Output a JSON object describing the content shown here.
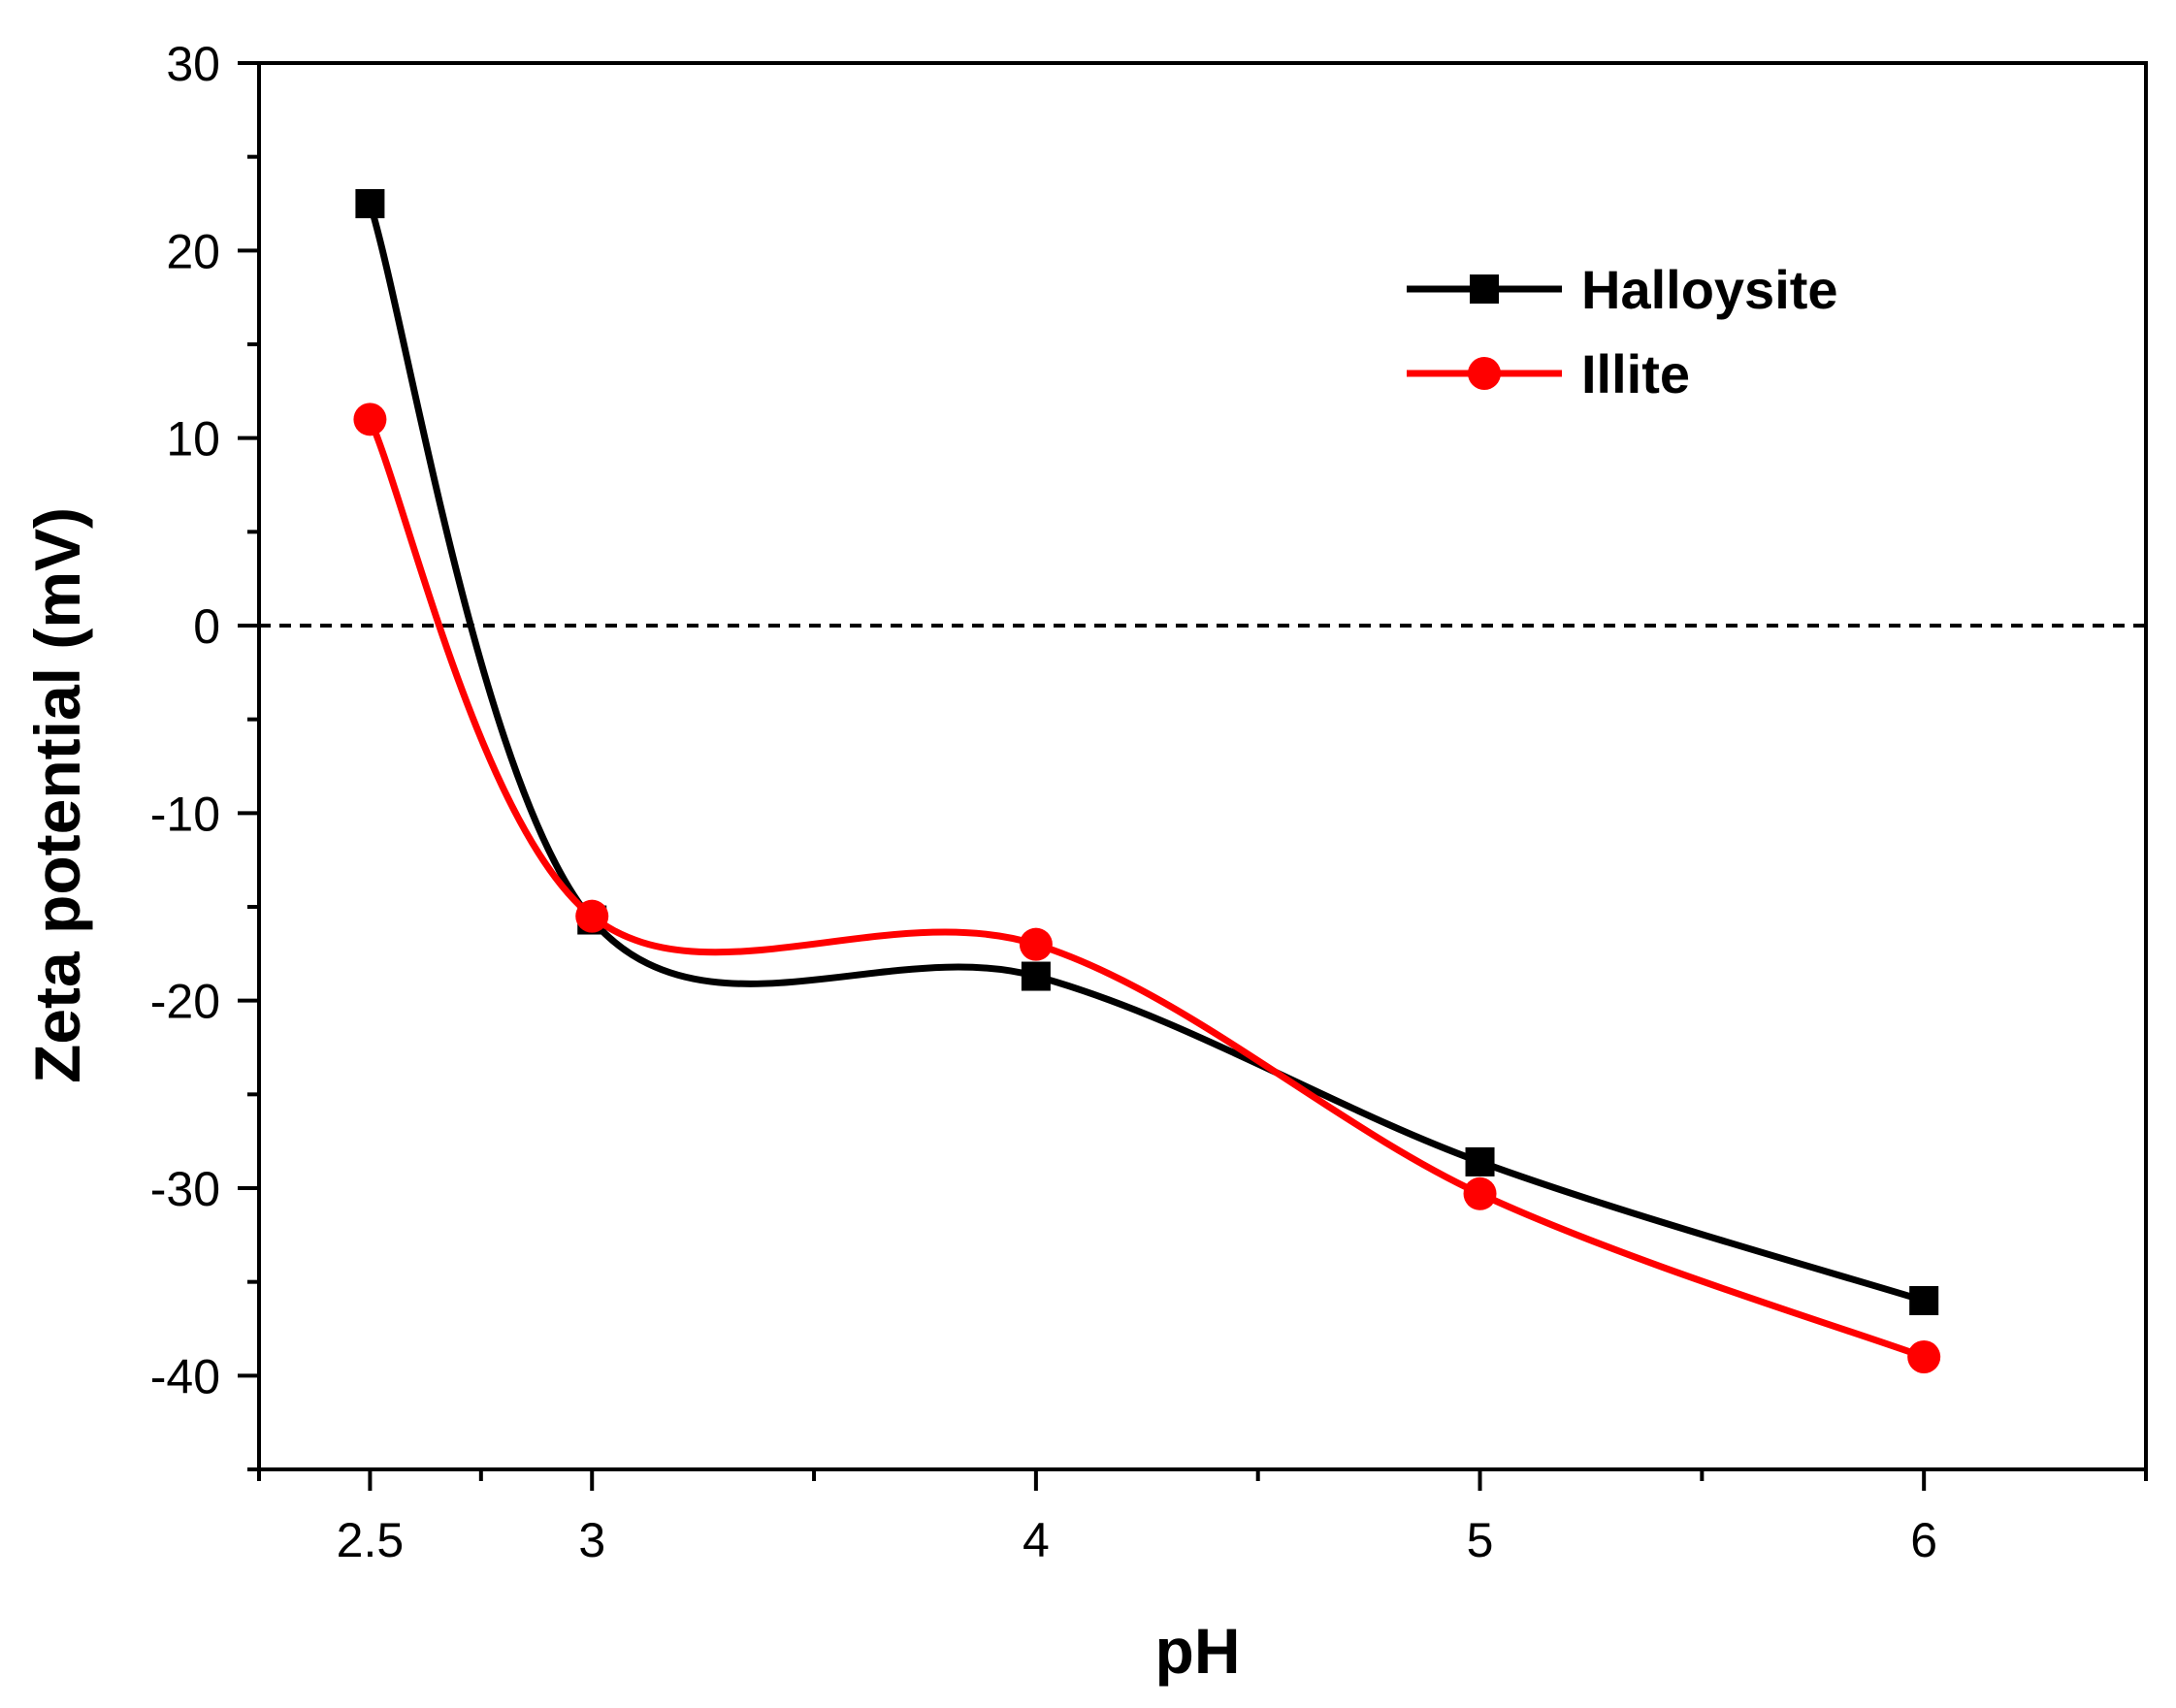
{
  "chart_data": {
    "type": "line",
    "title": "",
    "xlabel": "pH",
    "ylabel": "Zeta potential (mV)",
    "x": [
      2.5,
      3,
      4,
      5,
      6
    ],
    "x_tick_labels": [
      "2.5",
      "3",
      "4",
      "5",
      "6"
    ],
    "xlim": [
      2.25,
      6.5
    ],
    "ylim": [
      -45,
      30
    ],
    "y_ticks": [
      30,
      20,
      10,
      0,
      -10,
      -20,
      -30,
      -40
    ],
    "y_tick_labels": [
      "30",
      "20",
      "10",
      "0",
      "-10",
      "-20",
      "-30",
      "-40"
    ],
    "reference_line": {
      "y": 0,
      "style": "dashed"
    },
    "legend_position": "top-right",
    "grid": false,
    "series": [
      {
        "name": "Halloysite",
        "marker": "square",
        "color": "#000000",
        "values": [
          22.5,
          -15.7,
          -18.7,
          -28.6,
          -36.0
        ]
      },
      {
        "name": "Illite",
        "marker": "circle",
        "color": "#ff0000",
        "values": [
          11.0,
          -15.5,
          -17.0,
          -30.3,
          -39.0
        ]
      }
    ]
  }
}
